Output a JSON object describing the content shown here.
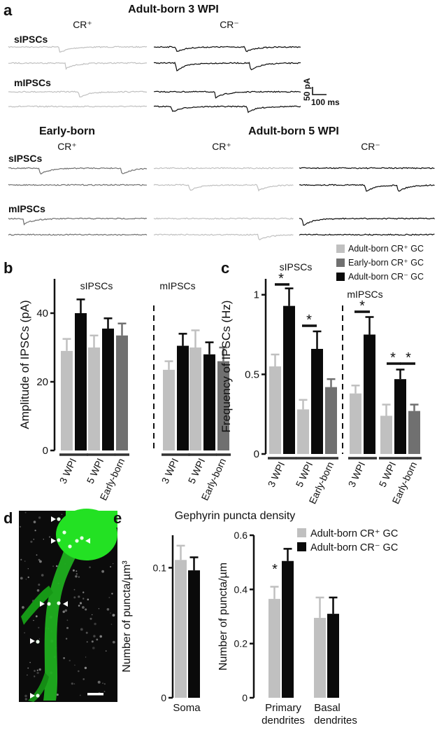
{
  "panel_a": {
    "letter": "a",
    "top_title": "Adult-born 3 WPI",
    "top_cols": [
      "CR⁺",
      "CR⁻"
    ],
    "row_sipsc": "sIPSCs",
    "row_mipsc": "mIPSCs",
    "scale_y": "50 pA",
    "scale_x": "100 ms",
    "bottom_title_left": "Early-born",
    "bottom_title_right": "Adult-born 5 WPI",
    "bottom_cols": [
      "CR⁺",
      "CR⁺",
      "CR⁻"
    ]
  },
  "colors": {
    "adult_cr_pos": "#c0c0c0",
    "early_cr_pos": "#707070",
    "adult_cr_neg": "#0a0a0a",
    "green": "#22dd22"
  },
  "legend_bc": {
    "items": [
      "Adult-born CR⁺ GC",
      "Early-born CR⁺ GC",
      "Adult-born CR⁻ GC"
    ]
  },
  "chart_data": [
    {
      "panel": "b",
      "type": "bar",
      "ylabel": "Amplitude of IPSCs (pA)",
      "ylim": [
        0,
        50
      ],
      "yticks": [
        "0",
        "20",
        "40"
      ],
      "groups": [
        {
          "title": "sIPSCs",
          "categories": [
            {
              "label": "3 WPI",
              "bars": [
                {
                  "series": "Adult-born CR⁺ GC",
                  "value": 29,
                  "err": 3.5
                },
                {
                  "series": "Adult-born CR⁻ GC",
                  "value": 40,
                  "err": 4
                }
              ]
            },
            {
              "label": "5 WPI",
              "bars": [
                {
                  "series": "Adult-born CR⁺ GC",
                  "value": 30,
                  "err": 3.5
                },
                {
                  "series": "Adult-born CR⁻ GC",
                  "value": 35.5,
                  "err": 3
                }
              ]
            },
            {
              "label": "Early-born",
              "bars": [
                {
                  "series": "Early-born CR⁺ GC",
                  "value": 33.5,
                  "err": 3.5
                }
              ]
            }
          ]
        },
        {
          "title": "mIPSCs",
          "categories": [
            {
              "label": "3 WPI",
              "bars": [
                {
                  "series": "Adult-born CR⁺ GC",
                  "value": 23.5,
                  "err": 2.5
                },
                {
                  "series": "Adult-born CR⁻ GC",
                  "value": 30.5,
                  "err": 3.5
                }
              ]
            },
            {
              "label": "5 WPI",
              "bars": [
                {
                  "series": "Adult-born CR⁺ GC",
                  "value": 30,
                  "err": 5
                },
                {
                  "series": "Adult-born CR⁻ GC",
                  "value": 28,
                  "err": 3.5
                }
              ]
            },
            {
              "label": "Early-born",
              "bars": [
                {
                  "series": "Early-born CR⁺ GC",
                  "value": 26,
                  "err": 4
                }
              ]
            }
          ]
        }
      ]
    },
    {
      "panel": "c",
      "type": "bar",
      "ylabel": "Frequency of IPSCs (Hz)",
      "ylim": [
        0,
        1.1
      ],
      "yticks": [
        "0",
        "0.5",
        "1"
      ],
      "groups": [
        {
          "title": "sIPSCs",
          "categories": [
            {
              "label": "3 WPI",
              "bars": [
                {
                  "series": "Adult-born CR⁺ GC",
                  "value": 0.55,
                  "err": 0.075
                },
                {
                  "series": "Adult-born CR⁻ GC",
                  "value": 0.93,
                  "err": 0.11
                }
              ]
            },
            {
              "label": "5 WPI",
              "bars": [
                {
                  "series": "Adult-born CR⁺ GC",
                  "value": 0.28,
                  "err": 0.06
                },
                {
                  "series": "Adult-born CR⁻ GC",
                  "value": 0.66,
                  "err": 0.11
                }
              ]
            },
            {
              "label": "Early-born",
              "bars": [
                {
                  "series": "Early-born CR⁺ GC",
                  "value": 0.42,
                  "err": 0.05
                }
              ]
            }
          ]
        },
        {
          "title": "mIPSCs",
          "categories": [
            {
              "label": "3 WPI",
              "bars": [
                {
                  "series": "Adult-born CR⁺ GC",
                  "value": 0.38,
                  "err": 0.05
                },
                {
                  "series": "Adult-born CR⁻ GC",
                  "value": 0.75,
                  "err": 0.11
                }
              ]
            },
            {
              "label": "5 WPI",
              "bars": [
                {
                  "series": "Adult-born CR⁺ GC",
                  "value": 0.24,
                  "err": 0.07
                },
                {
                  "series": "Adult-born CR⁻ GC",
                  "value": 0.47,
                  "err": 0.06
                }
              ]
            },
            {
              "label": "Early-born",
              "bars": [
                {
                  "series": "Early-born CR⁺ GC",
                  "value": 0.27,
                  "err": 0.04
                }
              ]
            }
          ]
        }
      ],
      "significance": "*"
    },
    {
      "panel": "e",
      "type": "bar",
      "ylabel": "Number of puncta/µm³",
      "ylim": [
        0,
        0.125
      ],
      "yticks": [
        "0",
        "0.1"
      ],
      "categories": [
        "Soma"
      ],
      "series": [
        {
          "name": "Adult-born CR⁺ GC",
          "values": [
            0.106
          ],
          "err": [
            0.011
          ]
        },
        {
          "name": "Adult-born CR⁻ GC",
          "values": [
            0.098
          ],
          "err": [
            0.01
          ]
        }
      ]
    },
    {
      "panel": "e",
      "type": "bar",
      "ylabel": "Number of puncta/µm",
      "ylim": [
        0,
        0.6
      ],
      "yticks": [
        "0",
        "0.2",
        "0.4",
        "0.6"
      ],
      "categories": [
        "Primary dendrites",
        "Basal dendrites"
      ],
      "series": [
        {
          "name": "Adult-born CR⁺ GC",
          "values": [
            0.365,
            0.295
          ],
          "err": [
            0.045,
            0.075
          ]
        },
        {
          "name": "Adult-born CR⁻ GC",
          "values": [
            0.505,
            0.31
          ],
          "err": [
            0.045,
            0.06
          ]
        }
      ]
    }
  ],
  "panel_d": {
    "letter": "d"
  },
  "panel_e": {
    "letter": "e",
    "title": "Gephyrin puncta density",
    "legend": [
      "Adult-born CR⁺ GC",
      "Adult-born CR⁻ GC"
    ],
    "soma_label": "Soma",
    "primary_label": [
      "Primary",
      "dendrites"
    ],
    "basal_label": [
      "Basal",
      "dendrites"
    ]
  },
  "letters": {
    "b": "b",
    "c": "c"
  },
  "star": "*"
}
